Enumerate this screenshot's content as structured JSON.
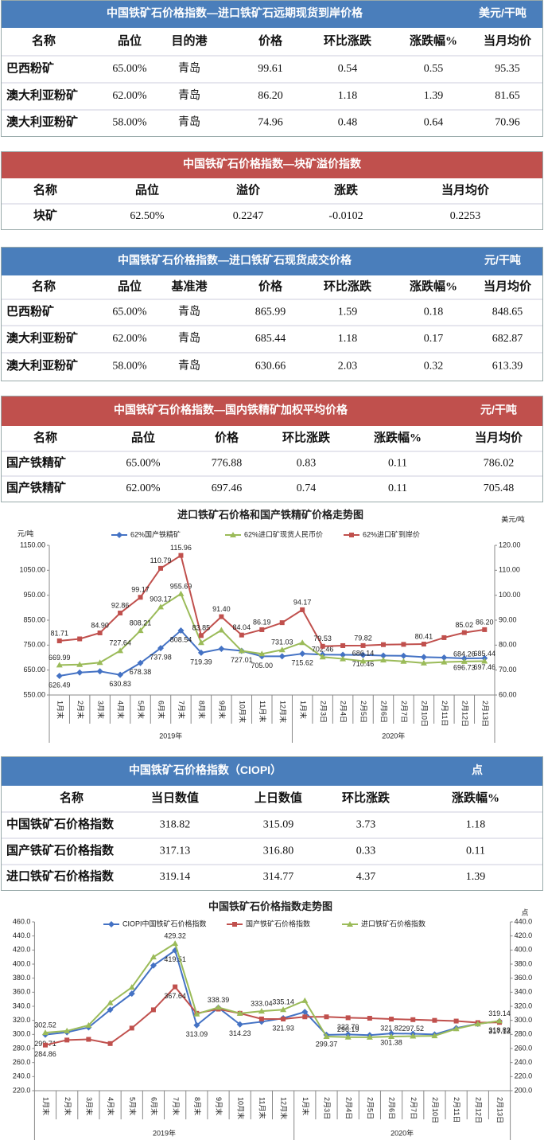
{
  "tables": [
    {
      "title": "中国铁矿石价格指数—进口铁矿石远期现货到岸价格",
      "unit": "美元/干吨",
      "header_color": "#4a7ebb",
      "columns": [
        "名称",
        "品位",
        "目的港",
        "价格",
        "环比涨跌",
        "涨跌幅%",
        "当月均价"
      ],
      "rows": [
        [
          "巴西粉矿",
          "65.00%",
          "青岛",
          "99.61",
          "0.54",
          "0.55",
          "95.35"
        ],
        [
          "澳大利亚粉矿",
          "62.00%",
          "青岛",
          "86.20",
          "1.18",
          "1.39",
          "81.65"
        ],
        [
          "澳大利亚粉矿",
          "58.00%",
          "青岛",
          "74.96",
          "0.48",
          "0.64",
          "70.96"
        ]
      ]
    },
    {
      "title": "中国铁矿石价格指数—块矿溢价指数",
      "header_color": "#c0504d",
      "columns": [
        "名称",
        "品位",
        "溢价",
        "涨跌",
        "当月均价"
      ],
      "rows": [
        [
          "块矿",
          "62.50%",
          "0.2247",
          "-0.0102",
          "0.2253"
        ]
      ]
    },
    {
      "title": "中国铁矿石价格指数—进口铁矿石现货成交价格",
      "unit": "元/干吨",
      "header_color": "#4a7ebb",
      "columns": [
        "名称",
        "品位",
        "基准港",
        "价格",
        "环比涨跌",
        "涨跌幅%",
        "当月均价"
      ],
      "rows": [
        [
          "巴西粉矿",
          "65.00%",
          "青岛",
          "865.99",
          "1.59",
          "0.18",
          "848.65"
        ],
        [
          "澳大利亚粉矿",
          "62.00%",
          "青岛",
          "685.44",
          "1.18",
          "0.17",
          "682.87"
        ],
        [
          "澳大利亚粉矿",
          "58.00%",
          "青岛",
          "630.66",
          "2.03",
          "0.32",
          "613.39"
        ]
      ]
    },
    {
      "title": "中国铁矿石价格指数—国内铁精矿加权平均价格",
      "unit": "元/干吨",
      "header_color": "#c0504d",
      "columns": [
        "名称",
        "品位",
        "价格",
        "环比涨跌",
        "涨跌幅%",
        "当月均价"
      ],
      "rows": [
        [
          "国产铁精矿",
          "65.00%",
          "776.88",
          "0.83",
          "0.11",
          "786.02"
        ],
        [
          "国产铁精矿",
          "62.00%",
          "697.46",
          "0.74",
          "0.11",
          "705.48"
        ]
      ]
    },
    {
      "title": "中国铁矿石价格指数（CIOPI）",
      "unit": "点",
      "header_color": "#4a7ebb",
      "columns": [
        "名称",
        "当日数值",
        "上日数值",
        "环比涨跌",
        "涨跌幅%"
      ],
      "rows": [
        [
          "中国铁矿石价格指数",
          "318.82",
          "315.09",
          "3.73",
          "1.18"
        ],
        [
          "国产铁矿石价格指数",
          "317.13",
          "316.80",
          "0.33",
          "0.11"
        ],
        [
          "进口铁矿石价格指数",
          "319.14",
          "314.77",
          "4.37",
          "1.39"
        ]
      ]
    }
  ],
  "chart_data": [
    {
      "type": "line",
      "title": "进口铁矿石价格和国产铁精矿价格走势图",
      "ylabel": "元/吨",
      "y2label": "美元/吨",
      "legend": "top",
      "grid": false,
      "categories": [
        "1月末",
        "2月末",
        "3月末",
        "4月末",
        "5月末",
        "6月末",
        "7月末",
        "8月末",
        "9月末",
        "10月末",
        "11月末",
        "12月末",
        "1月末",
        "2月3日",
        "2月4日",
        "2月5日",
        "2月6日",
        "2月7日",
        "2月10日",
        "2月11日",
        "2月12日",
        "2月13日"
      ],
      "x_groups": [
        "2019年",
        "2020年"
      ],
      "ylim": [
        550,
        1150
      ],
      "yticks": [
        {
          "value": 550,
          "label": "550.00"
        },
        {
          "value": 650,
          "label": "650.00"
        },
        {
          "value": 750,
          "label": "750.00"
        },
        {
          "value": 850,
          "label": "850.00"
        },
        {
          "value": 950,
          "label": "950.00"
        },
        {
          "value": 1050,
          "label": "1050.00"
        },
        {
          "value": 1150,
          "label": "1150.00"
        }
      ],
      "y2lim": [
        60,
        120
      ],
      "y2ticks": [
        {
          "value": 60,
          "label": "60.00"
        },
        {
          "value": 70,
          "label": "70.00"
        },
        {
          "value": 80,
          "label": "80.00"
        },
        {
          "value": 90,
          "label": "90.00"
        },
        {
          "value": 100,
          "label": "100.00"
        },
        {
          "value": 110,
          "label": "110.00"
        },
        {
          "value": 120,
          "label": "120.00"
        }
      ],
      "series": [
        {
          "name": "62%国产铁精矿",
          "color": "#4472c4",
          "marker": "diamond",
          "values": [
            626.49,
            640,
            645,
            630.83,
            678.38,
            737.98,
            808.54,
            719.39,
            735,
            727.01,
            705,
            705,
            715.62,
            712,
            711,
            710.46,
            708,
            707,
            702,
            700,
            696.73,
            697.46
          ],
          "value_labels": [
            "626.49",
            null,
            null,
            "630.83",
            "678.38",
            "737.98",
            "808.54",
            "719.39",
            null,
            "727.01",
            "705.00",
            null,
            "715.62",
            null,
            null,
            "710.46",
            null,
            null,
            null,
            null,
            "696.73",
            "697.46"
          ]
        },
        {
          "name": "62%进口矿现货人民币价",
          "color": "#9bbb59",
          "marker": "triangle",
          "values": [
            669.99,
            672,
            680,
            727.64,
            808.21,
            903.17,
            955.69,
            760,
            810,
            727,
            715,
            731.03,
            760,
            702.46,
            695,
            686.14,
            690,
            685,
            678,
            682,
            684.26,
            685.44
          ],
          "value_labels": [
            "669.99",
            null,
            null,
            "727.64",
            "808.21",
            "903.17",
            "955.69",
            null,
            null,
            null,
            null,
            "731.03",
            null,
            "702.46",
            null,
            "686.14",
            null,
            null,
            null,
            null,
            "684.26",
            "685.44"
          ]
        },
        {
          "name": "62%进口矿到岸价",
          "color": "#c0504d",
          "marker": "square",
          "axis": "y2",
          "values": [
            81.71,
            82.5,
            84.9,
            92.86,
            99.17,
            110.79,
            115.96,
            83.85,
            91.4,
            84.04,
            86.19,
            89,
            94.17,
            79.53,
            79.8,
            79.82,
            80.2,
            80.3,
            80.41,
            83,
            85.02,
            86.2
          ],
          "value_labels": [
            "81.71",
            null,
            "84.90",
            "92.86",
            "99.17",
            "110.79",
            "115.96",
            "83.85",
            "91.40",
            "84.04",
            "86.19",
            null,
            "94.17",
            "79.53",
            null,
            "79.82",
            null,
            null,
            "80.41",
            null,
            "85.02",
            "86.20"
          ]
        }
      ]
    },
    {
      "type": "line",
      "title": "中国铁矿石价格指数走势图",
      "y2label": "点",
      "legend": "top",
      "grid": false,
      "categories": [
        "1月末",
        "2月末",
        "3月末",
        "4月末",
        "5月末",
        "6月末",
        "7月末",
        "8月末",
        "9月末",
        "10月末",
        "11月末",
        "12月末",
        "1月末",
        "2月3日",
        "2月4日",
        "2月5日",
        "2月6日",
        "2月7日",
        "2月10日",
        "2月11日",
        "2月12日",
        "2月13日"
      ],
      "x_groups": [
        "2019年",
        "2020年"
      ],
      "ylim": [
        220,
        460
      ],
      "yticks": [
        {
          "value": 220,
          "label": "220.0"
        },
        {
          "value": 240,
          "label": "240.0"
        },
        {
          "value": 260,
          "label": "260.0"
        },
        {
          "value": 280,
          "label": "280.0"
        },
        {
          "value": 300,
          "label": "300.0"
        },
        {
          "value": 320,
          "label": "320.0"
        },
        {
          "value": 340,
          "label": "340.0"
        },
        {
          "value": 360,
          "label": "360.0"
        },
        {
          "value": 380,
          "label": "380.0"
        },
        {
          "value": 400,
          "label": "400.0"
        },
        {
          "value": 420,
          "label": "420.0"
        },
        {
          "value": 440,
          "label": "440.0"
        },
        {
          "value": 460,
          "label": "460.0"
        }
      ],
      "y2lim": [
        200,
        440
      ],
      "y2ticks": [
        {
          "value": 200,
          "label": "200.0"
        },
        {
          "value": 220,
          "label": "220.0"
        },
        {
          "value": 240,
          "label": "240.0"
        },
        {
          "value": 260,
          "label": "260.0"
        },
        {
          "value": 280,
          "label": "280.0"
        },
        {
          "value": 300,
          "label": "300.0"
        },
        {
          "value": 320,
          "label": "320.0"
        },
        {
          "value": 340,
          "label": "340.0"
        },
        {
          "value": 360,
          "label": "360.0"
        },
        {
          "value": 380,
          "label": "380.0"
        },
        {
          "value": 400,
          "label": "400.0"
        },
        {
          "value": 420,
          "label": "420.0"
        },
        {
          "value": 440,
          "label": "440.0"
        }
      ],
      "series": [
        {
          "name": "CIOPI中国铁矿石价格指数",
          "color": "#4472c4",
          "marker": "diamond",
          "values": [
            299.71,
            303,
            310,
            335,
            358,
            398,
            419.51,
            313.09,
            338,
            314.23,
            318,
            323,
            332,
            299.37,
            300,
            299,
            301.38,
            301,
            300,
            309,
            315.09,
            318.82
          ],
          "value_labels": [
            "299.71",
            null,
            null,
            null,
            null,
            null,
            "419.51",
            "313.09",
            null,
            "314.23",
            null,
            null,
            null,
            "299.37",
            null,
            null,
            "301.38",
            null,
            null,
            null,
            null,
            "318.82"
          ]
        },
        {
          "name": "国产铁矿石价格指数",
          "color": "#c0504d",
          "marker": "square",
          "values": [
            284.86,
            292,
            293,
            287,
            309,
            335,
            367.64,
            330,
            336,
            330,
            322,
            321.93,
            325,
            325,
            323.7,
            323,
            321.82,
            321,
            320,
            319,
            316.8,
            317.13
          ],
          "value_labels": [
            "284.86",
            null,
            null,
            null,
            null,
            null,
            "367.64",
            null,
            null,
            null,
            null,
            "321.93",
            null,
            null,
            "323.70",
            null,
            "321.82",
            null,
            null,
            null,
            null,
            "317.13"
          ]
        },
        {
          "name": "进口铁矿石价格指数",
          "color": "#9bbb59",
          "marker": "triangle",
          "values": [
            302.52,
            305,
            313,
            345,
            367,
            410,
            429.32,
            329,
            338.39,
            330,
            333.04,
            335.14,
            348,
            297,
            296.19,
            296,
            297,
            297.52,
            298,
            308,
            314.77,
            319.14
          ],
          "value_labels": [
            "302.52",
            null,
            null,
            null,
            null,
            null,
            "429.32",
            null,
            "338.39",
            null,
            "333.04",
            "335.14",
            null,
            null,
            "296.19",
            null,
            null,
            "297.52",
            null,
            null,
            null,
            "319.14"
          ]
        }
      ]
    }
  ]
}
